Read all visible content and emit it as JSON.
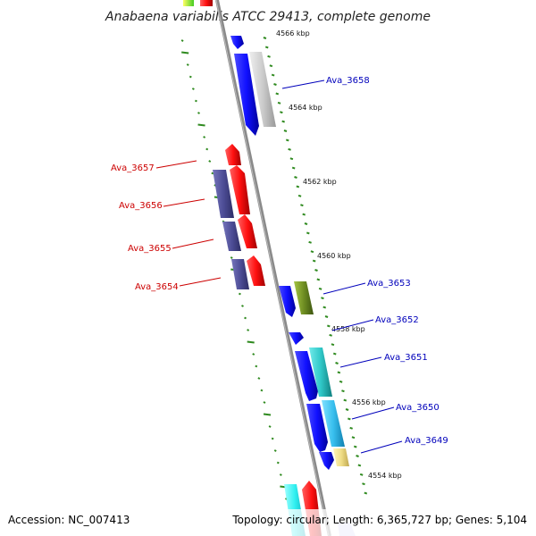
{
  "title": "Anabaena variabilis ATCC 29413, complete genome",
  "footer": {
    "accession": "Accession: NC_007413",
    "summary": "Topology: circular; Length: 6,365,727 bp; Genes: 5,104"
  },
  "scale": {
    "ticks": [
      "4566 kbp",
      "4564 kbp",
      "4562 kbp",
      "4560 kbp",
      "4558 kbp",
      "4556 kbp",
      "4554 kbp"
    ]
  },
  "genes": {
    "forward_color": "#0000cc",
    "reverse_color": "#dd0000",
    "labels": {
      "ava_3658": "Ava_3658",
      "ava_3657": "Ava_3657",
      "ava_3656": "Ava_3656",
      "ava_3655": "Ava_3655",
      "ava_3654": "Ava_3654",
      "ava_3653": "Ava_3653",
      "ava_3652": "Ava_3652",
      "ava_3651": "Ava_3651",
      "ava_3650": "Ava_3650",
      "ava_3649": "Ava_3649"
    }
  }
}
